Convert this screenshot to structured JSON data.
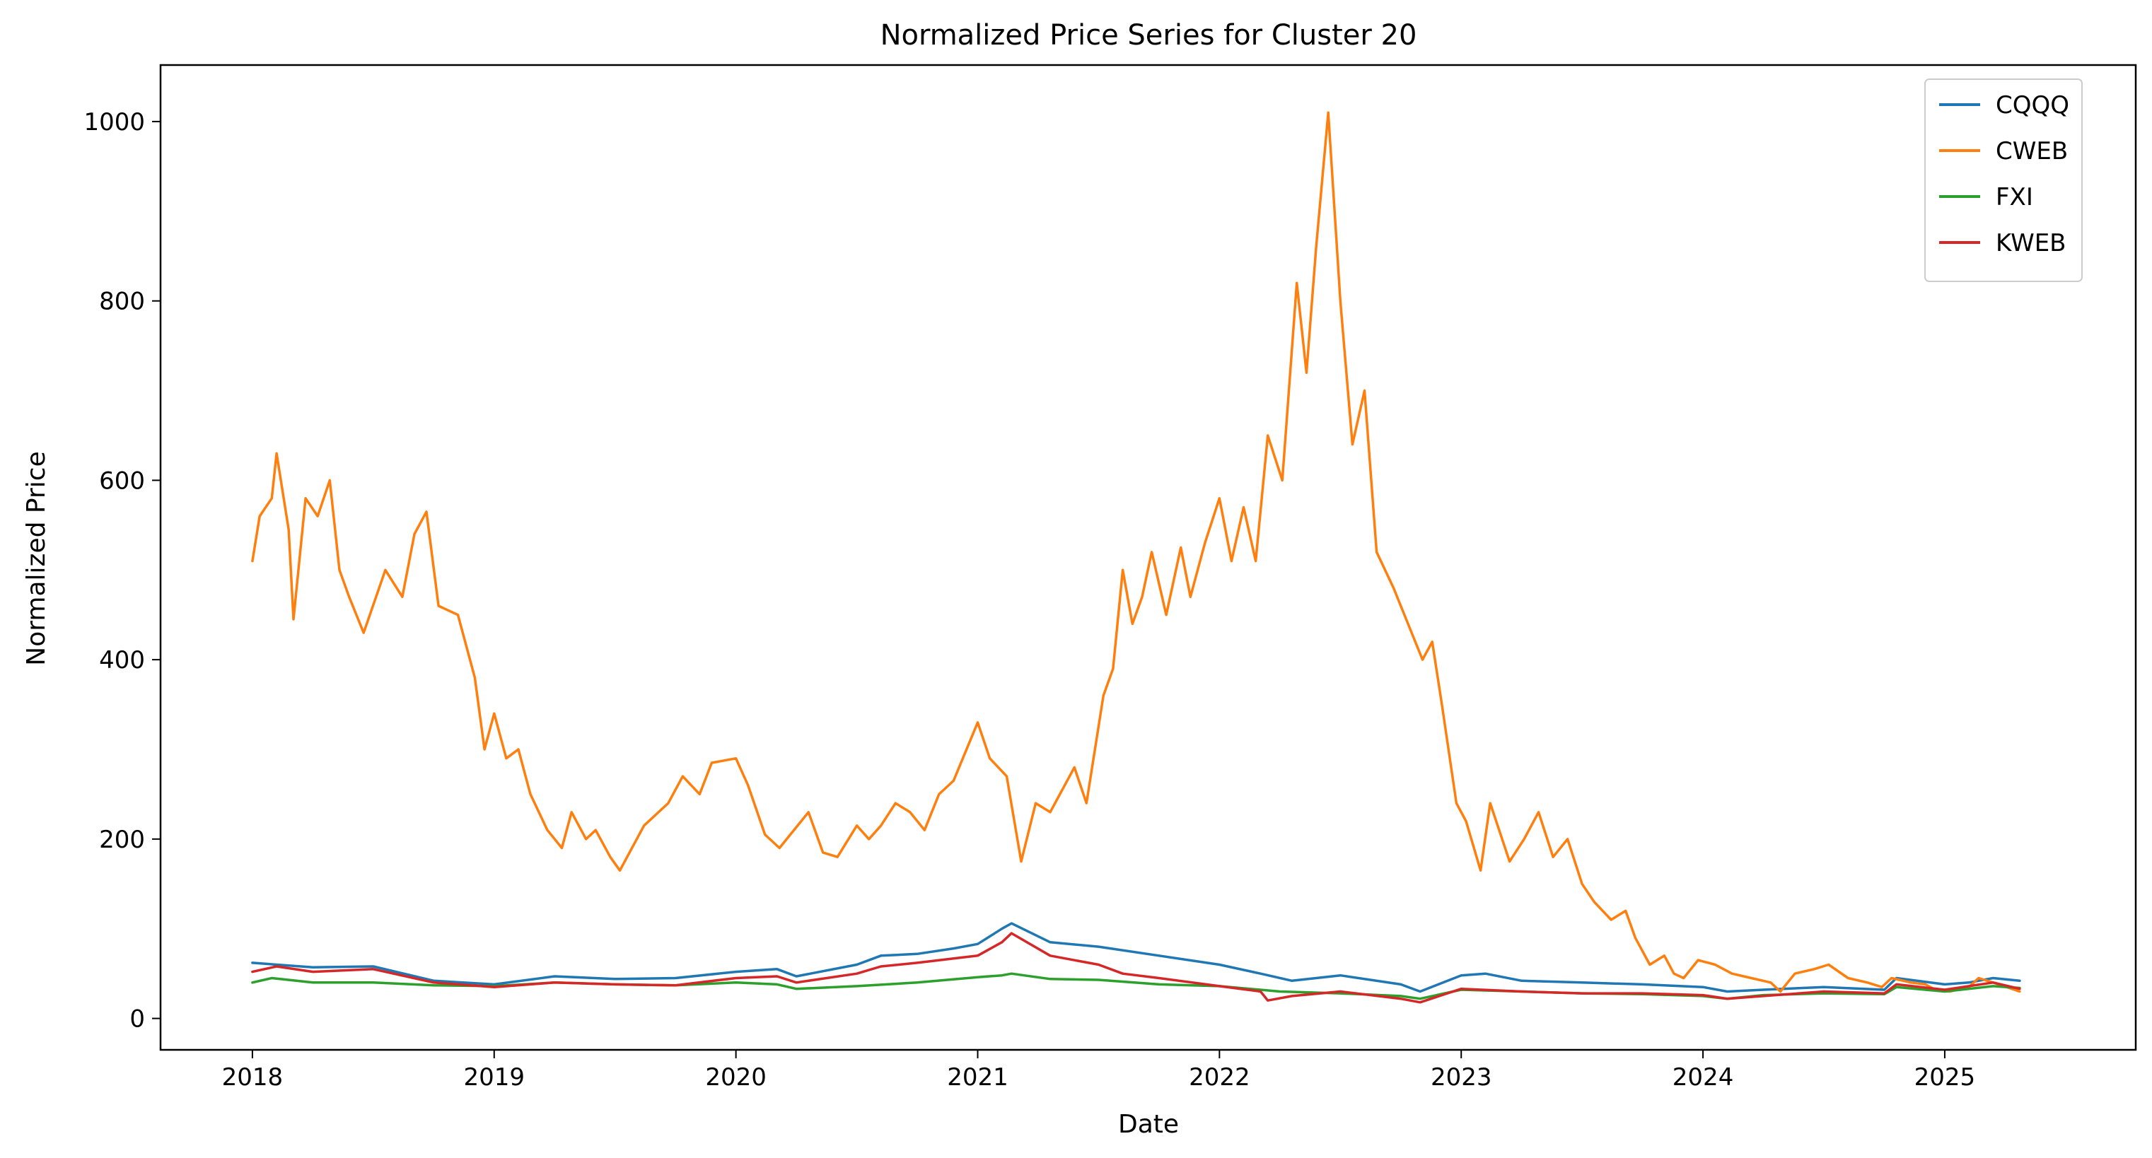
{
  "chart_data": {
    "type": "line",
    "title": "Normalized Price Series for Cluster 20",
    "xlabel": "Date",
    "ylabel": "Normalized Price",
    "xlim": [
      2017.62,
      2025.79
    ],
    "ylim": [
      -35,
      1063
    ],
    "x_ticks": [
      2018,
      2019,
      2020,
      2021,
      2022,
      2023,
      2024,
      2025
    ],
    "x_tick_labels": [
      "2018",
      "2019",
      "2020",
      "2021",
      "2022",
      "2023",
      "2024",
      "2025"
    ],
    "y_ticks": [
      0,
      200,
      400,
      600,
      800,
      1000
    ],
    "y_tick_labels": [
      "0",
      "200",
      "400",
      "600",
      "800",
      "1000"
    ],
    "grid": false,
    "legend_position": "top-right",
    "series": [
      {
        "name": "CQQQ",
        "color": "#1f77b4",
        "points": [
          [
            2018.0,
            62
          ],
          [
            2018.25,
            57
          ],
          [
            2018.5,
            58
          ],
          [
            2018.75,
            42
          ],
          [
            2019.0,
            38
          ],
          [
            2019.25,
            47
          ],
          [
            2019.5,
            44
          ],
          [
            2019.75,
            45
          ],
          [
            2020.0,
            52
          ],
          [
            2020.17,
            55
          ],
          [
            2020.25,
            47
          ],
          [
            2020.5,
            60
          ],
          [
            2020.6,
            70
          ],
          [
            2020.75,
            72
          ],
          [
            2020.9,
            78
          ],
          [
            2021.0,
            83
          ],
          [
            2021.1,
            100
          ],
          [
            2021.14,
            106
          ],
          [
            2021.3,
            85
          ],
          [
            2021.5,
            80
          ],
          [
            2021.75,
            70
          ],
          [
            2022.0,
            60
          ],
          [
            2022.17,
            50
          ],
          [
            2022.3,
            42
          ],
          [
            2022.5,
            48
          ],
          [
            2022.75,
            38
          ],
          [
            2022.83,
            30
          ],
          [
            2023.0,
            48
          ],
          [
            2023.1,
            50
          ],
          [
            2023.25,
            42
          ],
          [
            2023.5,
            40
          ],
          [
            2023.75,
            38
          ],
          [
            2024.0,
            35
          ],
          [
            2024.1,
            30
          ],
          [
            2024.25,
            32
          ],
          [
            2024.5,
            35
          ],
          [
            2024.75,
            32
          ],
          [
            2024.8,
            45
          ],
          [
            2025.0,
            38
          ],
          [
            2025.1,
            40
          ],
          [
            2025.2,
            45
          ],
          [
            2025.31,
            42
          ]
        ]
      },
      {
        "name": "CWEB",
        "color": "#ff7f0e",
        "points": [
          [
            2018.0,
            510
          ],
          [
            2018.03,
            560
          ],
          [
            2018.08,
            580
          ],
          [
            2018.1,
            630
          ],
          [
            2018.15,
            545
          ],
          [
            2018.17,
            445
          ],
          [
            2018.22,
            580
          ],
          [
            2018.27,
            560
          ],
          [
            2018.32,
            600
          ],
          [
            2018.36,
            500
          ],
          [
            2018.4,
            470
          ],
          [
            2018.46,
            430
          ],
          [
            2018.55,
            500
          ],
          [
            2018.62,
            470
          ],
          [
            2018.67,
            540
          ],
          [
            2018.72,
            565
          ],
          [
            2018.77,
            460
          ],
          [
            2018.85,
            450
          ],
          [
            2018.92,
            380
          ],
          [
            2018.96,
            300
          ],
          [
            2019.0,
            340
          ],
          [
            2019.05,
            290
          ],
          [
            2019.1,
            300
          ],
          [
            2019.15,
            250
          ],
          [
            2019.22,
            210
          ],
          [
            2019.28,
            190
          ],
          [
            2019.32,
            230
          ],
          [
            2019.38,
            200
          ],
          [
            2019.42,
            210
          ],
          [
            2019.48,
            180
          ],
          [
            2019.52,
            165
          ],
          [
            2019.62,
            215
          ],
          [
            2019.72,
            240
          ],
          [
            2019.78,
            270
          ],
          [
            2019.85,
            250
          ],
          [
            2019.9,
            285
          ],
          [
            2020.0,
            290
          ],
          [
            2020.05,
            260
          ],
          [
            2020.12,
            205
          ],
          [
            2020.18,
            190
          ],
          [
            2020.3,
            230
          ],
          [
            2020.36,
            185
          ],
          [
            2020.42,
            180
          ],
          [
            2020.5,
            215
          ],
          [
            2020.55,
            200
          ],
          [
            2020.6,
            215
          ],
          [
            2020.66,
            240
          ],
          [
            2020.72,
            230
          ],
          [
            2020.78,
            210
          ],
          [
            2020.84,
            250
          ],
          [
            2020.9,
            265
          ],
          [
            2021.0,
            330
          ],
          [
            2021.05,
            290
          ],
          [
            2021.12,
            270
          ],
          [
            2021.18,
            175
          ],
          [
            2021.24,
            240
          ],
          [
            2021.3,
            230
          ],
          [
            2021.36,
            260
          ],
          [
            2021.4,
            280
          ],
          [
            2021.45,
            240
          ],
          [
            2021.52,
            360
          ],
          [
            2021.56,
            390
          ],
          [
            2021.6,
            500
          ],
          [
            2021.64,
            440
          ],
          [
            2021.68,
            470
          ],
          [
            2021.72,
            520
          ],
          [
            2021.78,
            450
          ],
          [
            2021.84,
            525
          ],
          [
            2021.88,
            470
          ],
          [
            2021.94,
            530
          ],
          [
            2022.0,
            580
          ],
          [
            2022.05,
            510
          ],
          [
            2022.1,
            570
          ],
          [
            2022.15,
            510
          ],
          [
            2022.2,
            650
          ],
          [
            2022.26,
            600
          ],
          [
            2022.32,
            820
          ],
          [
            2022.36,
            720
          ],
          [
            2022.4,
            860
          ],
          [
            2022.45,
            1010
          ],
          [
            2022.5,
            800
          ],
          [
            2022.55,
            640
          ],
          [
            2022.6,
            700
          ],
          [
            2022.65,
            520
          ],
          [
            2022.72,
            480
          ],
          [
            2022.78,
            440
          ],
          [
            2022.84,
            400
          ],
          [
            2022.88,
            420
          ],
          [
            2022.92,
            350
          ],
          [
            2022.98,
            240
          ],
          [
            2023.02,
            220
          ],
          [
            2023.08,
            165
          ],
          [
            2023.12,
            240
          ],
          [
            2023.2,
            175
          ],
          [
            2023.26,
            200
          ],
          [
            2023.32,
            230
          ],
          [
            2023.38,
            180
          ],
          [
            2023.44,
            200
          ],
          [
            2023.5,
            150
          ],
          [
            2023.55,
            130
          ],
          [
            2023.62,
            110
          ],
          [
            2023.68,
            120
          ],
          [
            2023.72,
            90
          ],
          [
            2023.78,
            60
          ],
          [
            2023.84,
            70
          ],
          [
            2023.88,
            50
          ],
          [
            2023.92,
            45
          ],
          [
            2023.98,
            65
          ],
          [
            2024.05,
            60
          ],
          [
            2024.12,
            50
          ],
          [
            2024.2,
            45
          ],
          [
            2024.28,
            40
          ],
          [
            2024.32,
            30
          ],
          [
            2024.38,
            50
          ],
          [
            2024.46,
            55
          ],
          [
            2024.52,
            60
          ],
          [
            2024.6,
            45
          ],
          [
            2024.68,
            40
          ],
          [
            2024.74,
            35
          ],
          [
            2024.78,
            45
          ],
          [
            2024.86,
            40
          ],
          [
            2024.92,
            38
          ],
          [
            2024.96,
            32
          ],
          [
            2025.02,
            30
          ],
          [
            2025.1,
            35
          ],
          [
            2025.14,
            45
          ],
          [
            2025.2,
            40
          ],
          [
            2025.31,
            30
          ]
        ]
      },
      {
        "name": "FXI",
        "color": "#2ca02c",
        "points": [
          [
            2018.0,
            40
          ],
          [
            2018.08,
            45
          ],
          [
            2018.25,
            40
          ],
          [
            2018.5,
            40
          ],
          [
            2018.75,
            37
          ],
          [
            2019.0,
            36
          ],
          [
            2019.25,
            40
          ],
          [
            2019.5,
            38
          ],
          [
            2019.75,
            37
          ],
          [
            2020.0,
            40
          ],
          [
            2020.17,
            38
          ],
          [
            2020.25,
            33
          ],
          [
            2020.5,
            36
          ],
          [
            2020.75,
            40
          ],
          [
            2021.0,
            46
          ],
          [
            2021.1,
            48
          ],
          [
            2021.14,
            50
          ],
          [
            2021.3,
            44
          ],
          [
            2021.5,
            43
          ],
          [
            2021.75,
            38
          ],
          [
            2022.0,
            36
          ],
          [
            2022.25,
            30
          ],
          [
            2022.5,
            28
          ],
          [
            2022.75,
            25
          ],
          [
            2022.83,
            22
          ],
          [
            2023.0,
            32
          ],
          [
            2023.25,
            30
          ],
          [
            2023.5,
            28
          ],
          [
            2023.75,
            27
          ],
          [
            2024.0,
            25
          ],
          [
            2024.1,
            22
          ],
          [
            2024.25,
            26
          ],
          [
            2024.5,
            28
          ],
          [
            2024.75,
            27
          ],
          [
            2024.8,
            35
          ],
          [
            2025.0,
            30
          ],
          [
            2025.2,
            36
          ],
          [
            2025.31,
            34
          ]
        ]
      },
      {
        "name": "KWEB",
        "color": "#d62728",
        "points": [
          [
            2018.0,
            52
          ],
          [
            2018.1,
            58
          ],
          [
            2018.25,
            52
          ],
          [
            2018.5,
            55
          ],
          [
            2018.75,
            40
          ],
          [
            2019.0,
            35
          ],
          [
            2019.25,
            40
          ],
          [
            2019.5,
            38
          ],
          [
            2019.75,
            37
          ],
          [
            2020.0,
            45
          ],
          [
            2020.17,
            47
          ],
          [
            2020.25,
            40
          ],
          [
            2020.5,
            50
          ],
          [
            2020.6,
            58
          ],
          [
            2020.75,
            62
          ],
          [
            2021.0,
            70
          ],
          [
            2021.1,
            85
          ],
          [
            2021.14,
            95
          ],
          [
            2021.3,
            70
          ],
          [
            2021.5,
            60
          ],
          [
            2021.6,
            50
          ],
          [
            2021.75,
            45
          ],
          [
            2022.0,
            36
          ],
          [
            2022.17,
            30
          ],
          [
            2022.2,
            20
          ],
          [
            2022.3,
            25
          ],
          [
            2022.5,
            30
          ],
          [
            2022.75,
            22
          ],
          [
            2022.83,
            18
          ],
          [
            2023.0,
            33
          ],
          [
            2023.25,
            30
          ],
          [
            2023.5,
            28
          ],
          [
            2023.75,
            28
          ],
          [
            2024.0,
            26
          ],
          [
            2024.1,
            22
          ],
          [
            2024.25,
            25
          ],
          [
            2024.5,
            30
          ],
          [
            2024.75,
            28
          ],
          [
            2024.8,
            38
          ],
          [
            2025.0,
            32
          ],
          [
            2025.2,
            40
          ],
          [
            2025.31,
            33
          ]
        ]
      }
    ]
  }
}
